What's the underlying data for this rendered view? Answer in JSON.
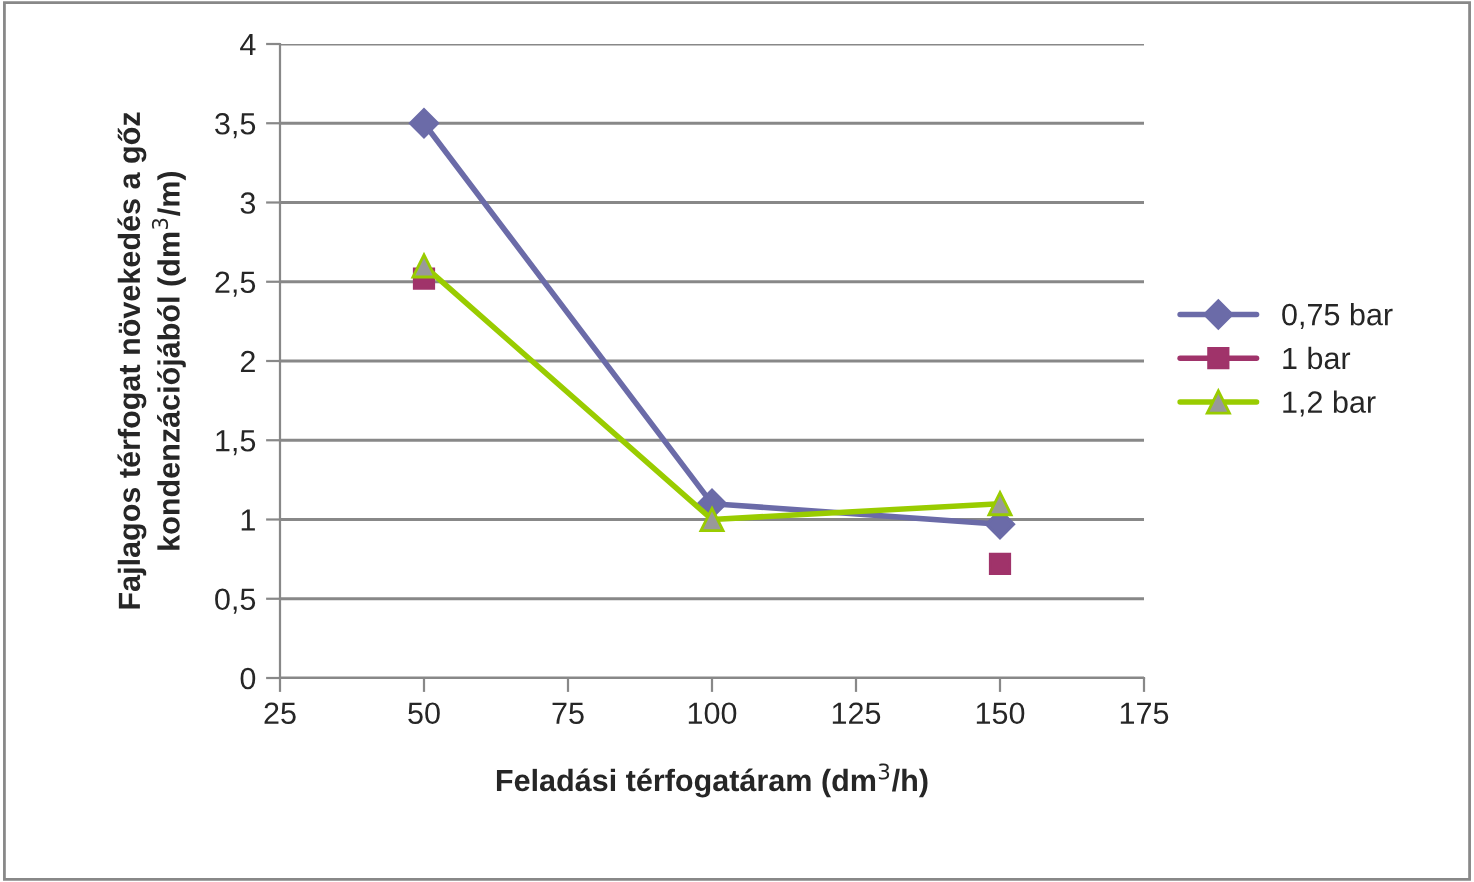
{
  "chart_data": {
    "type": "line",
    "xlabel": "Feladási térfogatáram (dm$^{3}$/h)",
    "ylabel": "Fajlagos térfogat növekedés a gőz\nkondenzációjából (dm$^{3}$/m)",
    "x": [
      50,
      100,
      150
    ],
    "series": [
      {
        "name": "0,75 bar",
        "color": "#6b6ba8",
        "marker": "diamond",
        "values": [
          3.5,
          1.1,
          0.97
        ]
      },
      {
        "name": "1 bar",
        "type": "scatter",
        "color": "#a0336a",
        "marker": "square",
        "values": [
          2.52,
          null,
          0.72
        ]
      },
      {
        "name": "1,2 bar",
        "color": "#99cc00",
        "marker": "triangle",
        "values": [
          2.6,
          1.0,
          1.1
        ]
      }
    ],
    "xlim": [
      25,
      175
    ],
    "xticks": [
      25,
      50,
      75,
      100,
      125,
      150,
      175
    ],
    "ylim": [
      0,
      4
    ],
    "yticks": [
      0,
      {
        "value": 0.5,
        "label": "0,5"
      },
      1,
      {
        "value": 1.5,
        "label": "1,5"
      },
      2,
      {
        "value": 2.5,
        "label": "2,5"
      },
      3,
      {
        "value": 3.5,
        "label": "3,5"
      },
      4
    ],
    "grid": "y",
    "legend": "right",
    "line_style": "solid"
  }
}
